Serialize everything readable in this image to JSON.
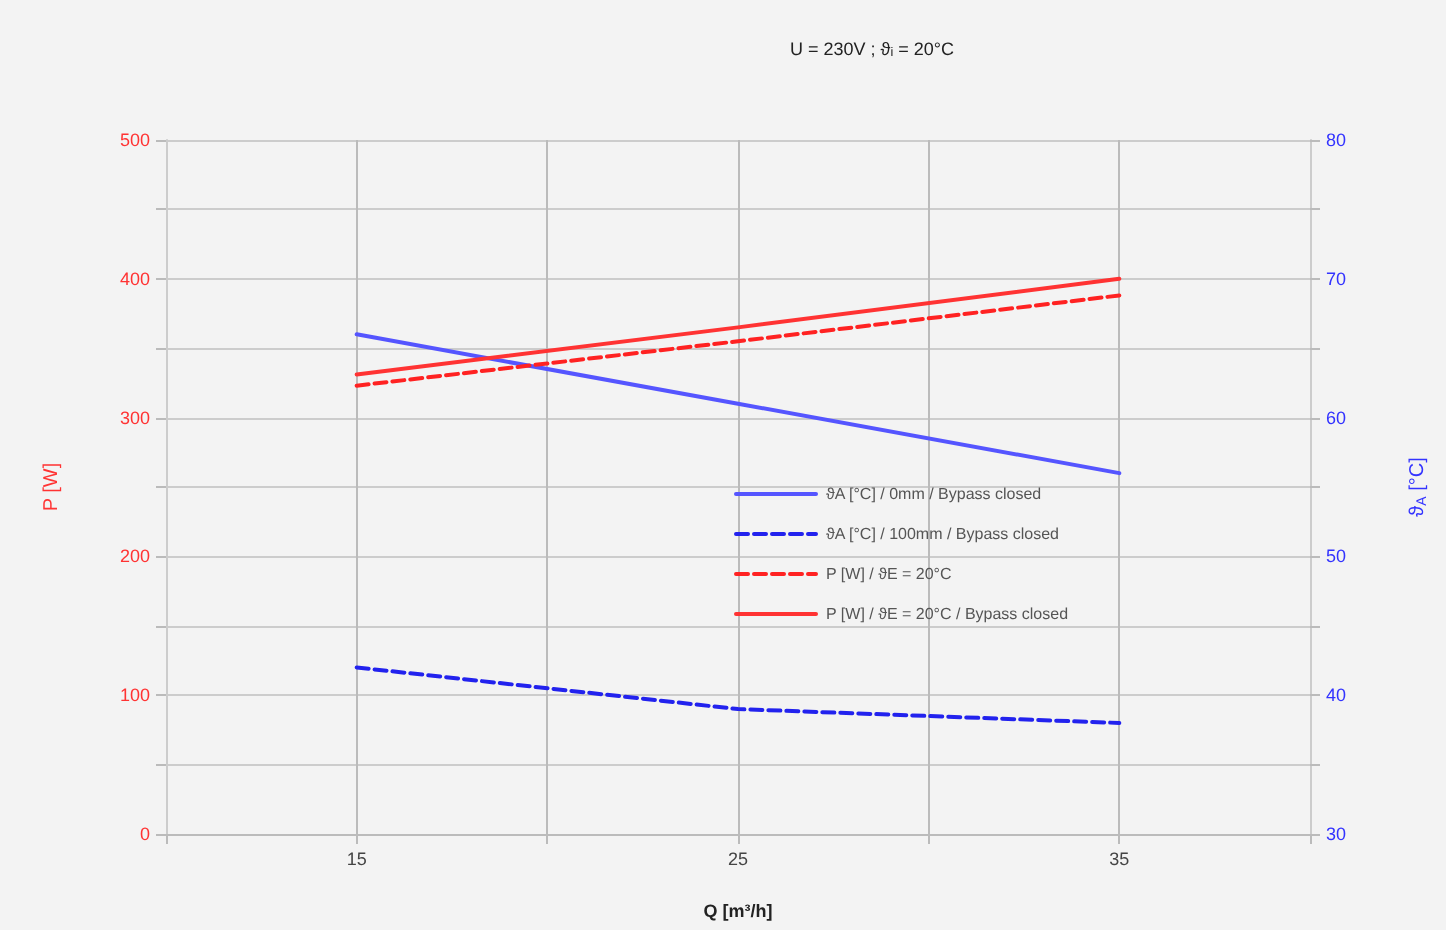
{
  "chart_data": {
    "type": "line",
    "subtitle": "U = 230V ; ϑ$_{i}$ = 20°C",
    "xlabel": "Q [m³/h]",
    "ylabel": "P [W]",
    "y2label": "ϑ$_{A}$ [°C]",
    "x": [
      15,
      25,
      35
    ],
    "series": [
      {
        "name": "ϑA [°C] / 0mm / Bypass closed",
        "color": "#5555ff",
        "axis": "y2",
        "line_style": "solid",
        "values": [
          66,
          61,
          56
        ]
      },
      {
        "name": "ϑA [°C] / 100mm / Bypass closed",
        "color": "#2222ee",
        "axis": "y2",
        "line_style": "dashed",
        "values": [
          42,
          39,
          38
        ]
      },
      {
        "name": "P [W] / ϑE = 20°C",
        "color": "#ff2222",
        "line_style": "dashed",
        "values": [
          323,
          355,
          388
        ]
      },
      {
        "name": "P [W] / ϑE = 20°C / Bypass closed",
        "color": "#ff3333",
        "line_style": "solid",
        "values": [
          331,
          365,
          400
        ]
      }
    ],
    "xlim": [
      10,
      40
    ],
    "xticks": [
      {
        "value": 10,
        "label": null
      },
      15,
      {
        "value": 20,
        "label": null
      },
      25,
      {
        "value": 30,
        "label": null
      },
      35,
      {
        "value": 40,
        "label": null
      }
    ],
    "ylim": [
      0,
      500
    ],
    "yticks": [
      0,
      {
        "value": 50,
        "label": null
      },
      100,
      {
        "value": 150,
        "label": null
      },
      200,
      {
        "value": 250,
        "label": null
      },
      300,
      {
        "value": 350,
        "label": null
      },
      400,
      {
        "value": 450,
        "label": null
      },
      500
    ],
    "y2lim": [
      30,
      80
    ],
    "y2ticks": [
      30,
      {
        "value": 35,
        "label": null
      },
      40,
      {
        "value": 45,
        "label": null
      },
      50,
      {
        "value": 55,
        "label": null
      },
      60,
      {
        "value": 65,
        "label": null
      },
      70,
      {
        "value": 75,
        "label": null
      },
      80
    ],
    "grid": true,
    "legend": "right",
    "marker": "none"
  }
}
